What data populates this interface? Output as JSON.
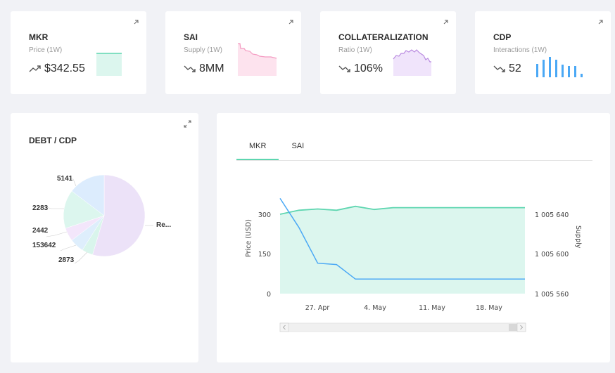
{
  "kpis": [
    {
      "title": "MKR",
      "subtitle": "Price (1W)",
      "value": "$342.55",
      "trend": "up",
      "spark_color": "#5ed6b0"
    },
    {
      "title": "SAI",
      "subtitle": "Supply (1W)",
      "value": "8MM",
      "trend": "down",
      "spark_color": "#f49ac1"
    },
    {
      "title": "COLLATERALIZATION",
      "subtitle": "Ratio (1W)",
      "value": "106%",
      "trend": "down",
      "spark_color": "#b98ae0"
    },
    {
      "title": "CDP",
      "subtitle": "Interactions (1W)",
      "value": "52",
      "trend": "down",
      "spark_color": "#4aa8f5"
    }
  ],
  "pie": {
    "title": "DEBT / CDP",
    "labels": [
      "5141",
      "2283",
      "2442",
      "153642",
      "2873",
      "Re..."
    ]
  },
  "main_chart": {
    "tabs": [
      "MKR",
      "SAI"
    ],
    "active_tab": "MKR",
    "left_axis_title": "Price (USD)",
    "right_axis_title": "Supply",
    "left_ticks": [
      "300",
      "150",
      "0"
    ],
    "right_ticks": [
      "1 005 640",
      "1 005 600",
      "1 005 560"
    ],
    "x_ticks": [
      "27. Apr",
      "4. May",
      "11. May",
      "18. May"
    ]
  },
  "chart_data": {
    "type": "line",
    "x_ticks": [
      "27. Apr",
      "4. May",
      "11. May",
      "18. May"
    ],
    "ylabel": "Price (USD)",
    "y2label": "Supply",
    "ylim": [
      0,
      300
    ],
    "y2_ticks": [
      "1 005 640",
      "1 005 600",
      "1 005 560"
    ],
    "series": [
      {
        "name": "MKR",
        "color": "#5ed6b0",
        "values": [
          300,
          315,
          320,
          315,
          330,
          318,
          325,
          325,
          325,
          325,
          325,
          325,
          325,
          325
        ]
      },
      {
        "name": "SAI",
        "color": "#4aa8f5",
        "values": [
          360,
          250,
          115,
          110,
          55,
          55,
          55,
          55,
          55,
          55,
          55,
          55,
          55,
          55
        ]
      }
    ]
  },
  "colors": {
    "accent": "#5ed6b0",
    "line_blue": "#4aa8f5"
  }
}
